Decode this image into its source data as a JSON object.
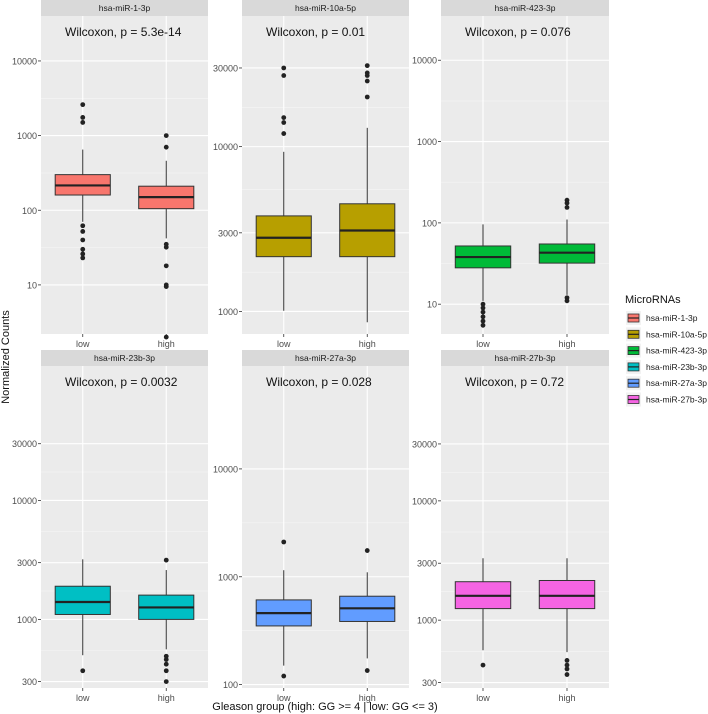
{
  "figure": {
    "ylabel": "Normalized Counts",
    "xlabel": "Gleason group (high: GG >= 4 | low: GG <= 3)",
    "legend_title": "MicroRNAs"
  },
  "chart_data": [
    {
      "type": "box",
      "scale": "log10",
      "title": "hsa-miR-1-3p",
      "annotation": "Wilcoxon, p = 5.3e-14",
      "color": "#F8766D",
      "ylim": [
        2.2,
        40000
      ],
      "yticks": [
        10,
        100,
        1000,
        10000
      ],
      "ytick_labels": [
        "10",
        "100",
        "1000",
        "10000"
      ],
      "categories": [
        "low",
        "high"
      ],
      "boxes": [
        {
          "q1": 160,
          "median": 215,
          "q3": 300,
          "whisker_low": 70,
          "whisker_high": 650,
          "outliers": [
            1500,
            1750,
            2600,
            62,
            52,
            40,
            30,
            26,
            23
          ]
        },
        {
          "q1": 105,
          "median": 150,
          "q3": 210,
          "whisker_low": 42,
          "whisker_high": 460,
          "outliers": [
            700,
            1000,
            35,
            32,
            18,
            10,
            9.5,
            2
          ]
        }
      ]
    },
    {
      "type": "box",
      "scale": "log10",
      "title": "hsa-miR-10a-5p",
      "annotation": "Wilcoxon, p = 0.01",
      "color": "#B79F00",
      "ylim": [
        730,
        62000
      ],
      "yticks": [
        1000,
        3000,
        10000,
        30000
      ],
      "ytick_labels": [
        "1000",
        "3000",
        "10000",
        "30000"
      ],
      "categories": [
        "low",
        "high"
      ],
      "boxes": [
        {
          "q1": 2150,
          "median": 2800,
          "q3": 3800,
          "whisker_low": 1010,
          "whisker_high": 9300,
          "outliers": [
            12000,
            14000,
            15000,
            27000,
            30000
          ]
        },
        {
          "q1": 2150,
          "median": 3100,
          "q3": 4500,
          "whisker_low": 860,
          "whisker_high": 13000,
          "outliers": [
            20000,
            25000,
            27000,
            28000,
            31000
          ]
        }
      ]
    },
    {
      "type": "box",
      "scale": "log10",
      "title": "hsa-miR-423-3p",
      "annotation": "Wilcoxon, p = 0.076",
      "color": "#00BA38",
      "ylim": [
        4.3,
        35000
      ],
      "yticks": [
        10,
        100,
        1000,
        10000
      ],
      "ytick_labels": [
        "10",
        "100",
        "1000",
        "10000"
      ],
      "categories": [
        "low",
        "high"
      ],
      "boxes": [
        {
          "q1": 28,
          "median": 38,
          "q3": 52,
          "whisker_low": 11,
          "whisker_high": 96,
          "outliers": [
            10,
            9,
            8,
            7,
            6.2,
            5.5
          ]
        },
        {
          "q1": 32,
          "median": 43,
          "q3": 55,
          "whisker_low": 13,
          "whisker_high": 110,
          "outliers": [
            155,
            175,
            190,
            12,
            11
          ]
        }
      ]
    },
    {
      "type": "box",
      "scale": "log10",
      "title": "hsa-miR-23b-3p",
      "annotation": "Wilcoxon, p = 0.0032",
      "color": "#00BFC4",
      "ylim": [
        265,
        135000
      ],
      "yticks": [
        300,
        1000,
        3000,
        10000,
        30000
      ],
      "ytick_labels": [
        "300",
        "1000",
        "3000",
        "10000",
        "30000"
      ],
      "categories": [
        "low",
        "high"
      ],
      "boxes": [
        {
          "q1": 1100,
          "median": 1400,
          "q3": 1900,
          "whisker_low": 500,
          "whisker_high": 3200,
          "outliers": [
            370
          ]
        },
        {
          "q1": 1000,
          "median": 1260,
          "q3": 1600,
          "whisker_low": 560,
          "whisker_high": 2600,
          "outliers": [
            3150,
            490,
            460,
            420,
            370,
            300
          ]
        }
      ]
    },
    {
      "type": "box",
      "scale": "log10",
      "title": "hsa-miR-27a-3p",
      "annotation": "Wilcoxon, p = 0.028",
      "color": "#619CFF",
      "ylim": [
        93,
        90000
      ],
      "yticks": [
        100,
        1000,
        10000
      ],
      "ytick_labels": [
        "100",
        "1000",
        "10000"
      ],
      "categories": [
        "low",
        "high"
      ],
      "boxes": [
        {
          "q1": 350,
          "median": 460,
          "q3": 610,
          "whisker_low": 150,
          "whisker_high": 1150,
          "outliers": [
            2100,
            120
          ]
        },
        {
          "q1": 385,
          "median": 510,
          "q3": 660,
          "whisker_low": 175,
          "whisker_high": 1100,
          "outliers": [
            1750,
            135
          ]
        }
      ]
    },
    {
      "type": "box",
      "scale": "log10",
      "title": "hsa-miR-27b-3p",
      "annotation": "Wilcoxon, p = 0.72",
      "color": "#F564E3",
      "ylim": [
        270,
        135000
      ],
      "yticks": [
        300,
        1000,
        3000,
        10000,
        30000
      ],
      "ytick_labels": [
        "300",
        "1000",
        "3000",
        "10000",
        "30000"
      ],
      "categories": [
        "low",
        "high"
      ],
      "boxes": [
        {
          "q1": 1250,
          "median": 1600,
          "q3": 2100,
          "whisker_low": 560,
          "whisker_high": 3300,
          "outliers": [
            420
          ]
        },
        {
          "q1": 1250,
          "median": 1600,
          "q3": 2150,
          "whisker_low": 540,
          "whisker_high": 3300,
          "outliers": [
            460,
            420,
            390,
            350
          ]
        }
      ]
    }
  ]
}
